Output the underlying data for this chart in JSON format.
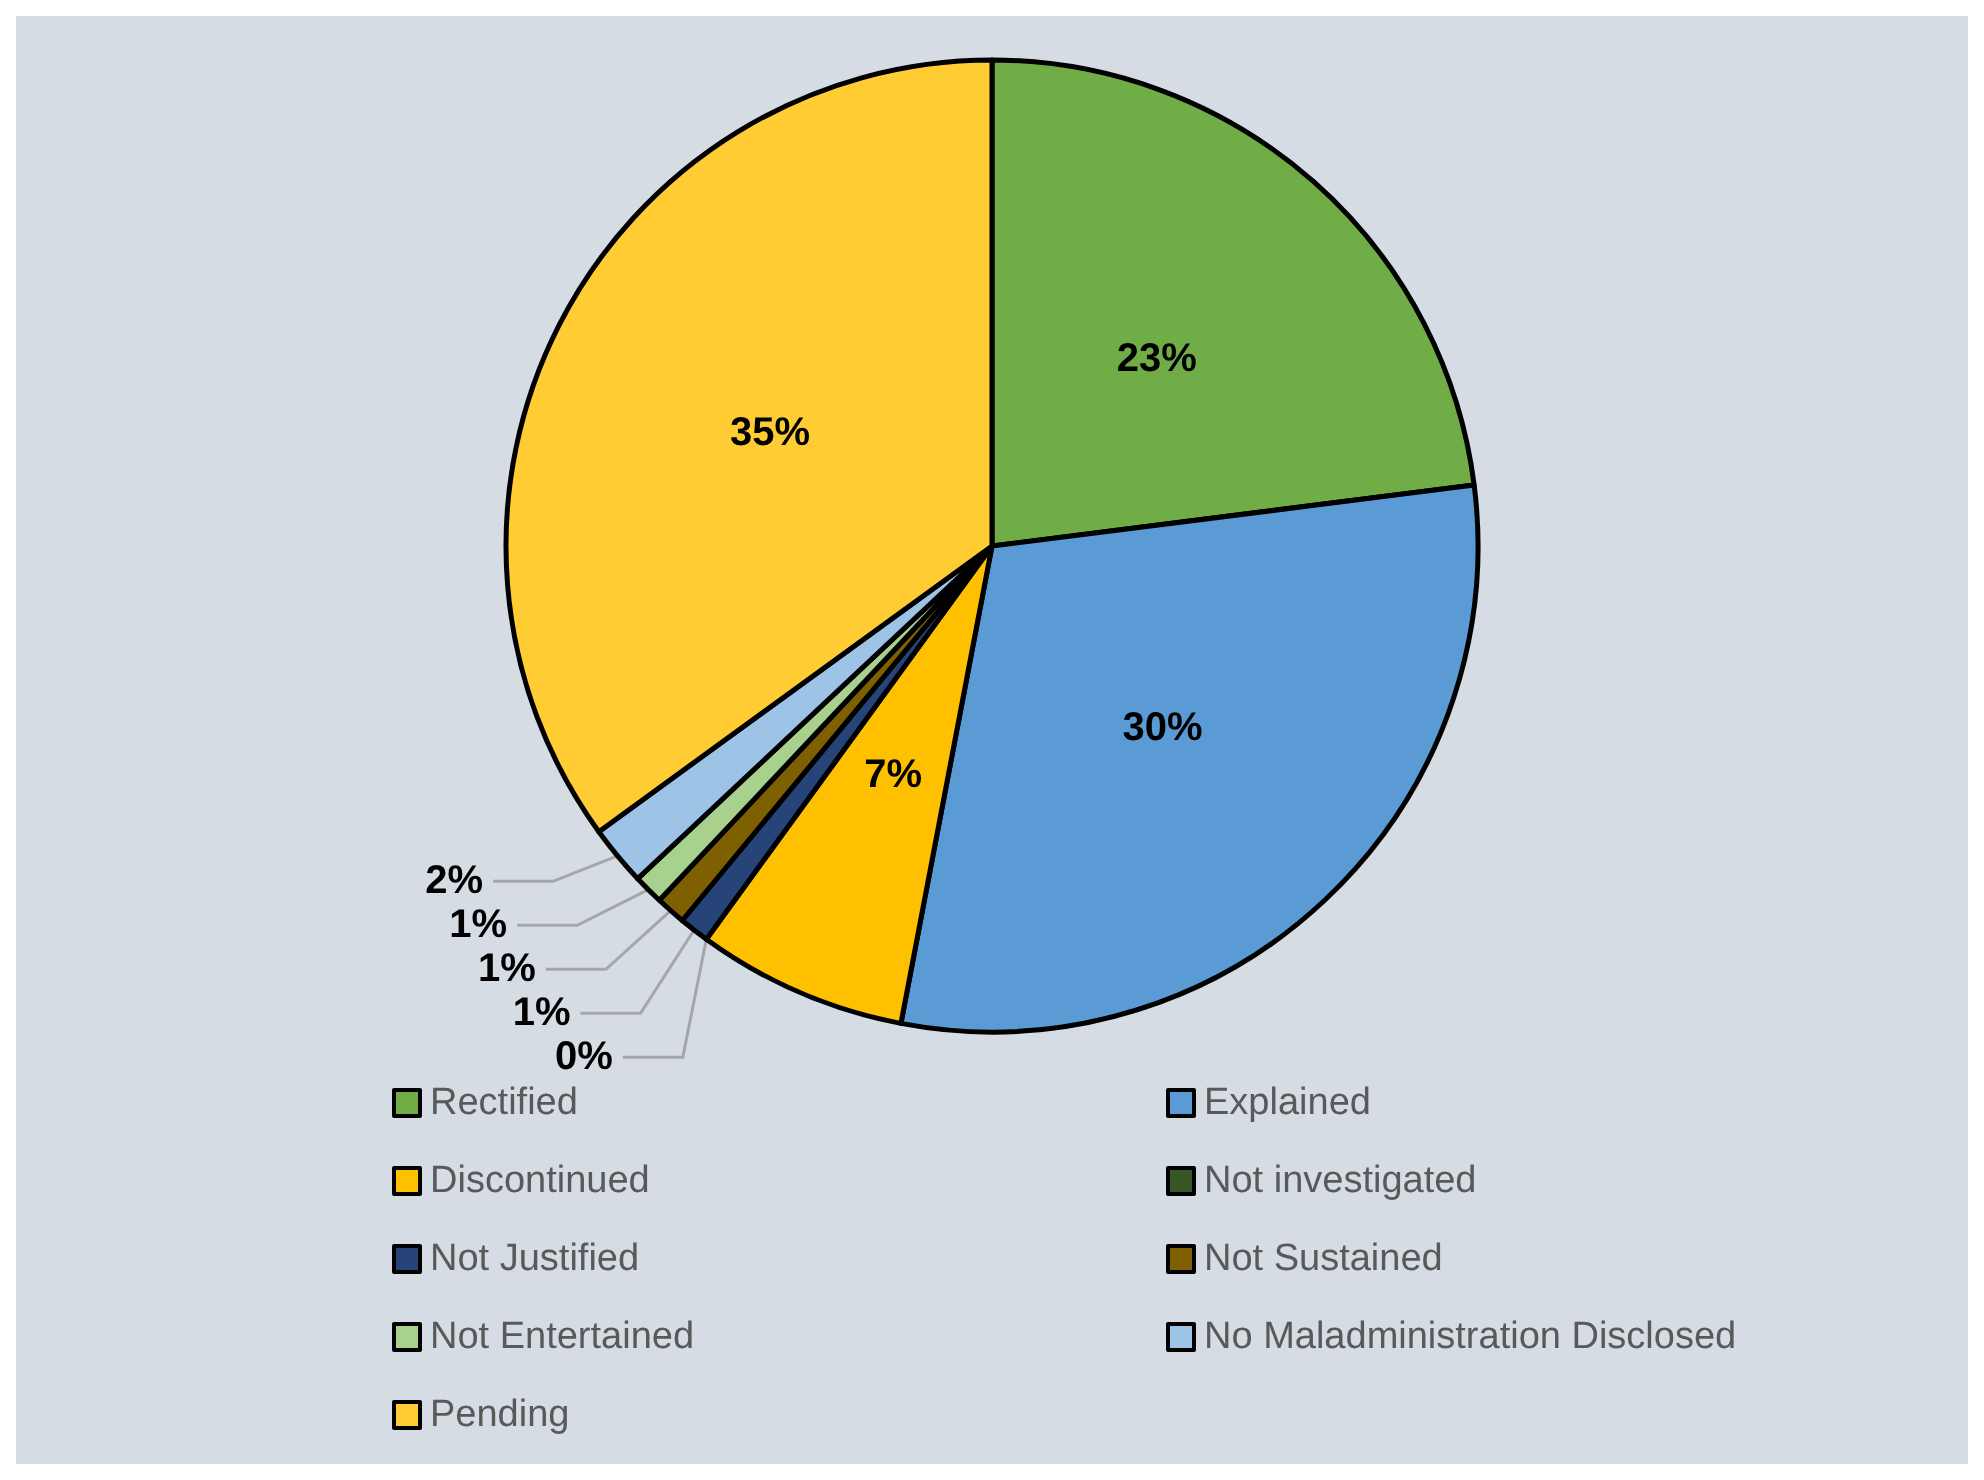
{
  "chart_data": {
    "type": "pie",
    "categories": [
      "Rectified",
      "Explained",
      "Discontinued",
      "Not investigated",
      "Not Justified",
      "Not Sustained",
      "Not Entertained",
      "No Maladministration Disclosed",
      "Pending"
    ],
    "values": [
      23,
      30,
      7,
      0,
      1,
      1,
      1,
      2,
      35
    ],
    "value_labels": [
      "23%",
      "30%",
      "7%",
      "0%",
      "1%",
      "1%",
      "1%",
      "2%",
      "35%"
    ],
    "colors": [
      "#70ad47",
      "#5b9bd5",
      "#ffc000",
      "#375623",
      "#264478",
      "#7f6000",
      "#a9d18e",
      "#9dc3e6",
      "#ffcd33"
    ],
    "legend": "bottom"
  }
}
